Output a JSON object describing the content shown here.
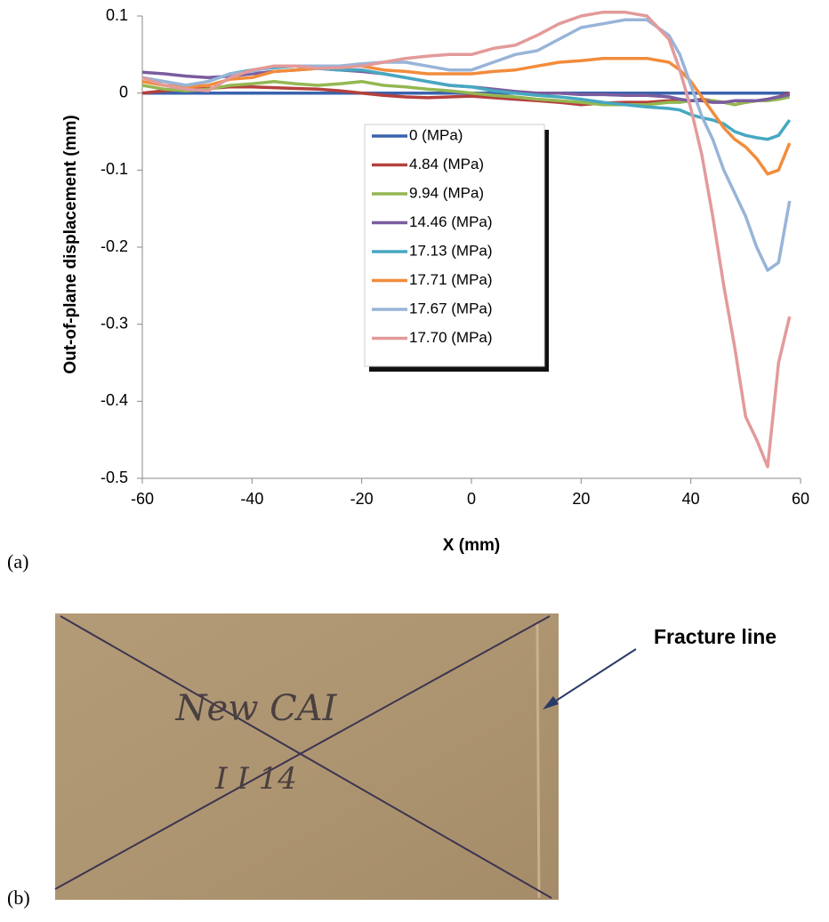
{
  "chart_data": {
    "type": "line",
    "x_label": "X (mm)",
    "y_label": "Out-of-plane  displacement  (mm)",
    "panel_label": "(a)",
    "xlim": [
      -60,
      60
    ],
    "ylim": [
      -0.5,
      0.1
    ],
    "xticks": [
      -60,
      -40,
      -20,
      0,
      20,
      40,
      60
    ],
    "yticks": [
      0.1,
      0,
      -0.1,
      -0.2,
      -0.3,
      -0.4,
      -0.5
    ],
    "x": [
      -60,
      -56,
      -52,
      -48,
      -44,
      -40,
      -36,
      -32,
      -28,
      -24,
      -20,
      -16,
      -12,
      -8,
      -4,
      0,
      4,
      8,
      12,
      16,
      20,
      24,
      28,
      32,
      36,
      38,
      40,
      42,
      44,
      46,
      48,
      50,
      52,
      54,
      56,
      58
    ],
    "series": [
      {
        "name": "0 (MPa)",
        "color": "#3a63ad",
        "values": [
          0,
          0,
          0,
          0,
          0,
          0,
          0,
          0,
          0,
          0,
          0,
          0,
          0,
          0,
          0,
          0,
          0,
          0,
          0,
          0,
          0,
          0,
          0,
          0,
          0,
          0,
          0,
          0,
          0,
          0,
          0,
          0,
          0,
          0,
          0,
          0
        ]
      },
      {
        "name": "4.84 (MPa)",
        "color": "#b5403d",
        "values": [
          0,
          0.003,
          0.005,
          0.006,
          0.008,
          0.008,
          0.007,
          0.006,
          0.005,
          0.003,
          0,
          -0.003,
          -0.005,
          -0.006,
          -0.005,
          -0.004,
          -0.006,
          -0.008,
          -0.01,
          -0.012,
          -0.015,
          -0.013,
          -0.012,
          -0.012,
          -0.01,
          -0.01,
          -0.01,
          -0.008,
          -0.01,
          -0.012,
          -0.015,
          -0.012,
          -0.01,
          -0.008,
          -0.005,
          0
        ]
      },
      {
        "name": "9.94 (MPa)",
        "color": "#94b752",
        "values": [
          0.01,
          0.005,
          0.003,
          0.005,
          0.01,
          0.012,
          0.015,
          0.012,
          0.01,
          0.012,
          0.015,
          0.01,
          0.008,
          0.005,
          0.003,
          0,
          -0.003,
          -0.005,
          -0.008,
          -0.01,
          -0.012,
          -0.015,
          -0.015,
          -0.015,
          -0.012,
          -0.012,
          -0.01,
          -0.01,
          -0.01,
          -0.012,
          -0.015,
          -0.012,
          -0.01,
          -0.01,
          -0.008,
          -0.005
        ]
      },
      {
        "name": "14.46 (MPa)",
        "color": "#7a5c9e",
        "values": [
          0.027,
          0.025,
          0.022,
          0.02,
          0.022,
          0.025,
          0.028,
          0.03,
          0.032,
          0.03,
          0.028,
          0.025,
          0.02,
          0.015,
          0.01,
          0.008,
          0.005,
          0.002,
          0,
          0,
          -0.002,
          -0.002,
          -0.003,
          -0.003,
          -0.005,
          -0.008,
          -0.01,
          -0.01,
          -0.012,
          -0.012,
          -0.01,
          -0.01,
          -0.01,
          -0.008,
          -0.005,
          -0.002
        ]
      },
      {
        "name": "17.13 (MPa)",
        "color": "#46a8c1",
        "values": [
          0.02,
          0.015,
          0.01,
          0.015,
          0.025,
          0.03,
          0.033,
          0.035,
          0.032,
          0.03,
          0.03,
          0.025,
          0.02,
          0.015,
          0.01,
          0.008,
          0.003,
          0,
          -0.003,
          -0.005,
          -0.008,
          -0.012,
          -0.015,
          -0.018,
          -0.02,
          -0.022,
          -0.028,
          -0.032,
          -0.035,
          -0.04,
          -0.05,
          -0.055,
          -0.058,
          -0.06,
          -0.055,
          -0.035
        ]
      },
      {
        "name": "17.71 (MPa)",
        "color": "#f28c3c",
        "values": [
          0.015,
          0.01,
          0.008,
          0.01,
          0.018,
          0.02,
          0.028,
          0.03,
          0.032,
          0.035,
          0.035,
          0.03,
          0.028,
          0.025,
          0.025,
          0.025,
          0.028,
          0.03,
          0.035,
          0.04,
          0.042,
          0.045,
          0.045,
          0.045,
          0.04,
          0.03,
          0.015,
          -0.005,
          -0.025,
          -0.045,
          -0.06,
          -0.07,
          -0.085,
          -0.105,
          -0.1,
          -0.065
        ]
      },
      {
        "name": "17.67 (MPa)",
        "color": "#98b4d8",
        "values": [
          0.02,
          0.015,
          0.01,
          0.015,
          0.025,
          0.028,
          0.035,
          0.035,
          0.035,
          0.035,
          0.038,
          0.04,
          0.04,
          0.035,
          0.03,
          0.03,
          0.04,
          0.05,
          0.055,
          0.07,
          0.085,
          0.09,
          0.095,
          0.095,
          0.075,
          0.05,
          0.01,
          -0.03,
          -0.06,
          -0.1,
          -0.13,
          -0.16,
          -0.2,
          -0.23,
          -0.22,
          -0.14
        ]
      },
      {
        "name": "17.70 (MPa)",
        "color": "#e39a9a",
        "values": [
          0.02,
          0.01,
          0.005,
          0.003,
          0.02,
          0.03,
          0.035,
          0.035,
          0.032,
          0.033,
          0.035,
          0.04,
          0.045,
          0.048,
          0.05,
          0.05,
          0.058,
          0.062,
          0.075,
          0.09,
          0.1,
          0.105,
          0.105,
          0.1,
          0.07,
          0.03,
          -0.02,
          -0.08,
          -0.16,
          -0.25,
          -0.33,
          -0.42,
          -0.45,
          -0.485,
          -0.35,
          -0.29
        ]
      }
    ]
  },
  "photo": {
    "panel_label": "(b)",
    "annotation": "Fracture line",
    "handwriting": [
      "New  CAI",
      "I I 14"
    ]
  }
}
